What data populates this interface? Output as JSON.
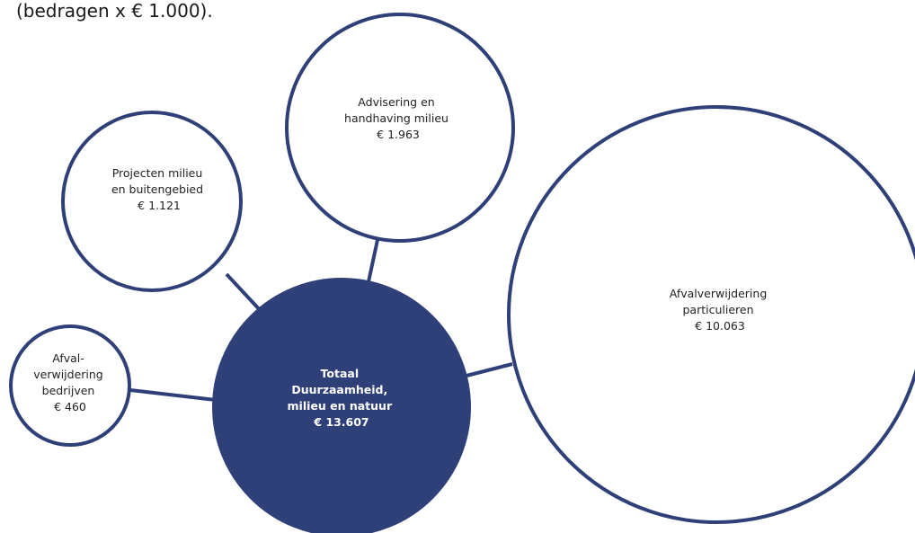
{
  "caption": "(bedragen x € 1.000).",
  "colors": {
    "total_fill": "#2f4079",
    "outline": "#2f4079",
    "bubble_fill": "#ffffff"
  },
  "total": {
    "lines": [
      "Totaal",
      "Duurzaamheid,",
      "milieu en natuur",
      "€ 13.607"
    ]
  },
  "bubbles": [
    {
      "id": "projecten",
      "lines": [
        "Projecten milieu",
        "en buitengebied",
        "€ 1.121"
      ]
    },
    {
      "id": "advisering",
      "lines": [
        "Advisering en",
        "handhaving milieu",
        "€ 1.963"
      ]
    },
    {
      "id": "afval-particulieren",
      "lines": [
        "Afvalverwijdering",
        "particulieren",
        "€ 10.063"
      ]
    },
    {
      "id": "afval-bedrijven",
      "lines": [
        "Afval-",
        "verwijdering",
        "bedrijven",
        "€ 460"
      ]
    }
  ]
}
